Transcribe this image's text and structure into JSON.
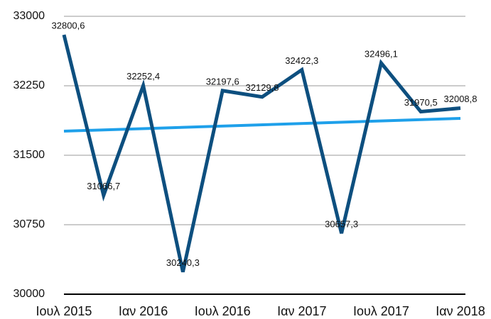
{
  "chart_data": {
    "type": "line",
    "categories": [
      "Ιουλ 2015",
      null,
      "Ιαν 2016",
      null,
      "Ιουλ 2016",
      null,
      "Ιαν 2017",
      null,
      "Ιουλ 2017",
      null,
      "Ιαν 2018"
    ],
    "series": [
      {
        "color": "#0d4f7f",
        "values": [
          32800.6,
          31066.7,
          32252.4,
          30240.3,
          32197.6,
          32129.8,
          32422.3,
          30657.3,
          32496.1,
          31970.5,
          32008.8
        ],
        "value_labels": [
          "32800,6",
          "31066,7",
          "32252,4",
          "30240,3",
          "32197,6",
          "32129,8",
          "32422,3",
          "30657,3",
          "32496,1",
          "31970,5",
          "32008,8"
        ]
      }
    ],
    "trendline": {
      "color": "#1ea0ea",
      "values": [
        31760,
        31898
      ]
    },
    "ylim": [
      30000,
      33000
    ],
    "yticks": [
      30000,
      30750,
      31500,
      32250,
      33000
    ],
    "grid": true
  }
}
